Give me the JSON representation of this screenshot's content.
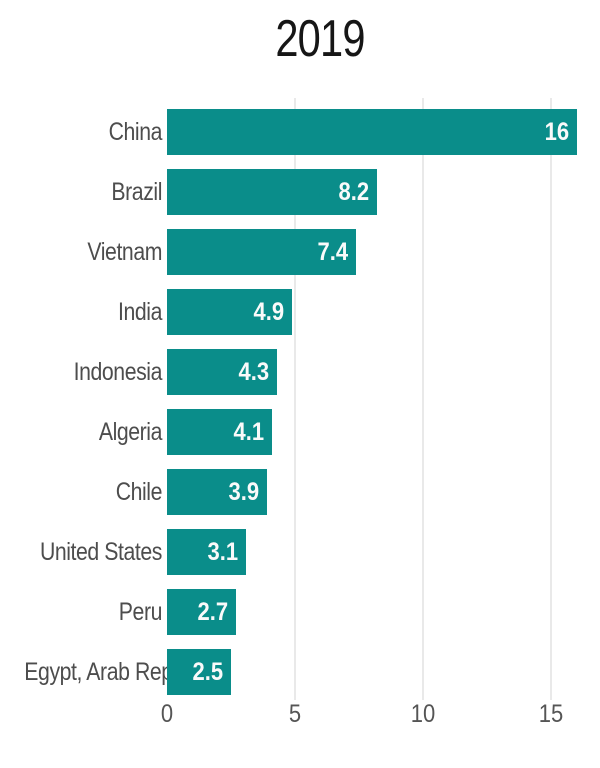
{
  "chart_data": {
    "type": "bar",
    "orientation": "horizontal",
    "title": "2019",
    "categories": [
      "China",
      "Brazil",
      "Vietnam",
      "India",
      "Indonesia",
      "Algeria",
      "Chile",
      "United States",
      "Peru",
      "Egypt, Arab Rep."
    ],
    "values": [
      16,
      8.2,
      7.4,
      4.9,
      4.3,
      4.1,
      3.9,
      3.1,
      2.7,
      2.5
    ],
    "value_labels": [
      "16",
      "8.2",
      "7.4",
      "4.9",
      "4.3",
      "4.1",
      "3.9",
      "3.1",
      "2.7",
      "2.5"
    ],
    "xlabel": "",
    "ylabel": "",
    "xlim": [
      0,
      16
    ],
    "x_ticks": [
      0,
      5,
      10,
      15
    ],
    "x_tick_labels": [
      "0",
      "5",
      "10",
      "15"
    ],
    "grid": "vertical-gridlines-on",
    "legend": "none",
    "sort_order": "descending",
    "colors": {
      "bar": "#0a8d8a",
      "value_text": "#fafafa",
      "category_text": "#4d4d4d",
      "tick_text": "#555555",
      "gridline": "#e9e9e9",
      "title_text": "#161616",
      "background": "#ffffff"
    }
  }
}
